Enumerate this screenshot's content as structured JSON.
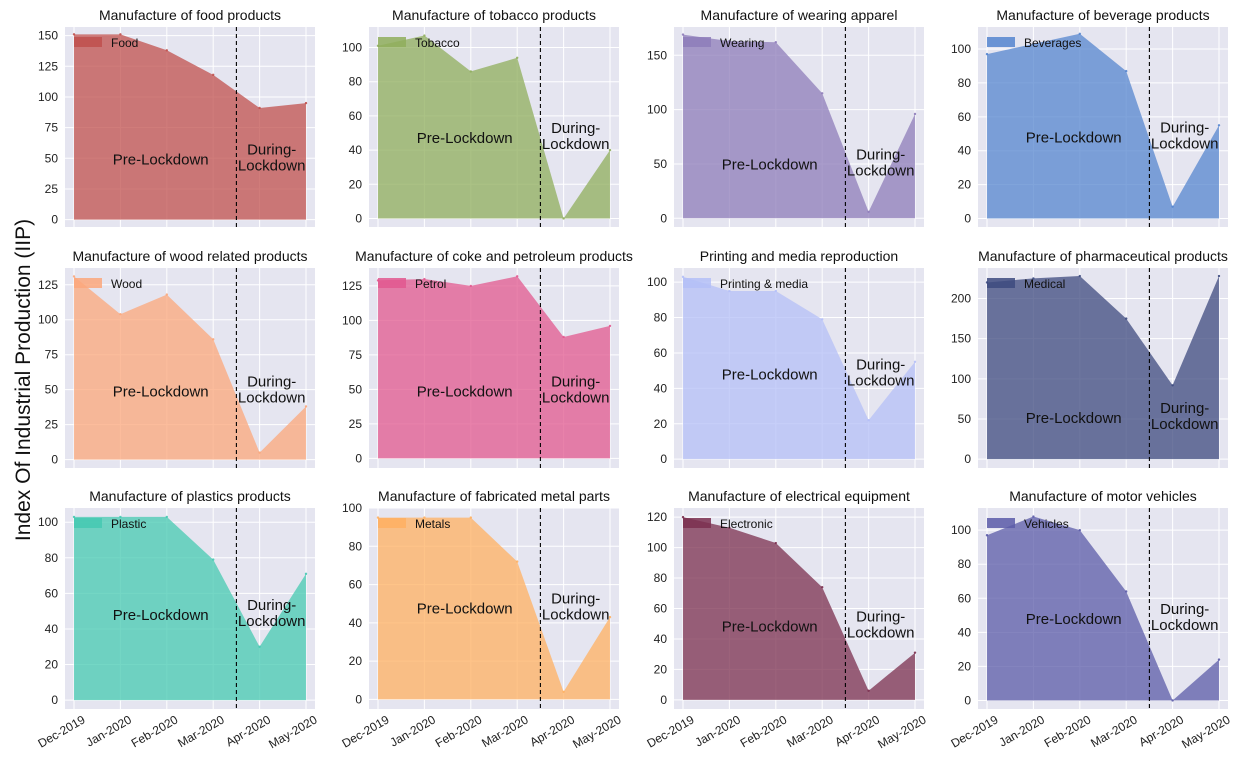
{
  "figure": {
    "ylabel": "Index Of Industrial Production (IIP)"
  },
  "chart_data": [
    {
      "type": "area",
      "title": "Manufacture of food products",
      "categories": [
        "Dec-2019",
        "Jan-2020",
        "Feb-2020",
        "Mar-2020",
        "Apr-2020",
        "May-2020"
      ],
      "series": [
        {
          "name": "Food",
          "values": [
            151,
            151,
            138,
            118,
            91,
            95
          ]
        }
      ],
      "color": "#c0504d",
      "ylim": [
        -6,
        157
      ],
      "yticks": [
        0,
        25,
        50,
        75,
        100,
        125,
        150
      ],
      "show_xticklabels": false,
      "lockdown_x": 3.5,
      "annotations": {
        "pre": "Pre-Lockdown",
        "during_1": "During-",
        "during_2": "Lockdown"
      },
      "annotation_y": {
        "pre": 45,
        "during": 45
      },
      "legend": "top-left",
      "grid": true
    },
    {
      "type": "area",
      "title": "Manufacture of tobacco products",
      "categories": [
        "Dec-2019",
        "Jan-2020",
        "Feb-2020",
        "Mar-2020",
        "Apr-2020",
        "May-2020"
      ],
      "series": [
        {
          "name": "Tobacco",
          "values": [
            101,
            107,
            86,
            94,
            0,
            40
          ]
        }
      ],
      "color": "#8fae5c",
      "ylim": [
        -5,
        112
      ],
      "yticks": [
        0,
        20,
        40,
        60,
        80,
        100
      ],
      "show_xticklabels": false,
      "lockdown_x": 3.5,
      "annotations": {
        "pre": "Pre-Lockdown",
        "during_1": "During-",
        "during_2": "Lockdown"
      },
      "annotation_y": {
        "pre": 44,
        "during": 44
      },
      "legend": "top-left",
      "grid": true
    },
    {
      "type": "area",
      "title": "Manufacture of wearing apparel",
      "categories": [
        "Dec-2019",
        "Jan-2020",
        "Feb-2020",
        "Mar-2020",
        "Apr-2020",
        "May-2020"
      ],
      "series": [
        {
          "name": "Wearing",
          "values": [
            169,
            163,
            162,
            115,
            6,
            96
          ]
        }
      ],
      "color": "#8e7cba",
      "ylim": [
        -8,
        176
      ],
      "yticks": [
        0,
        50,
        100,
        150
      ],
      "show_xticklabels": false,
      "lockdown_x": 3.5,
      "annotations": {
        "pre": "Pre-Lockdown",
        "during_1": "During-",
        "during_2": "Lockdown"
      },
      "annotation_y": {
        "pre": 45,
        "during": 45
      },
      "legend": "top-left",
      "grid": true
    },
    {
      "type": "area",
      "title": "Manufacture of beverage products",
      "categories": [
        "Dec-2019",
        "Jan-2020",
        "Feb-2020",
        "Mar-2020",
        "Apr-2020",
        "May-2020"
      ],
      "series": [
        {
          "name": "Beverages",
          "values": [
            97,
            103,
            109,
            87,
            7,
            55
          ]
        }
      ],
      "color": "#5585cf",
      "ylim": [
        -5,
        113
      ],
      "yticks": [
        0,
        20,
        40,
        60,
        80,
        100
      ],
      "show_xticklabels": false,
      "lockdown_x": 3.5,
      "annotations": {
        "pre": "Pre-Lockdown",
        "during_1": "During-",
        "during_2": "Lockdown"
      },
      "annotation_y": {
        "pre": 45,
        "during": 45
      },
      "legend": "top-left",
      "grid": true
    },
    {
      "type": "area",
      "title": "Manufacture of wood related products",
      "categories": [
        "Dec-2019",
        "Jan-2020",
        "Feb-2020",
        "Mar-2020",
        "Apr-2020",
        "May-2020"
      ],
      "series": [
        {
          "name": "Wood",
          "values": [
            131,
            104,
            118,
            86,
            5,
            38
          ]
        }
      ],
      "color": "#fba77b",
      "ylim": [
        -6,
        137
      ],
      "yticks": [
        0,
        25,
        50,
        75,
        100,
        125
      ],
      "show_xticklabels": false,
      "lockdown_x": 3.5,
      "annotations": {
        "pre": "Pre-Lockdown",
        "during_1": "During-",
        "during_2": "Lockdown"
      },
      "annotation_y": {
        "pre": 45,
        "during": 45
      },
      "legend": "top-left",
      "grid": true
    },
    {
      "type": "area",
      "title": "Manufacture of coke and  petroleum products",
      "categories": [
        "Dec-2019",
        "Jan-2020",
        "Feb-2020",
        "Mar-2020",
        "Apr-2020",
        "May-2020"
      ],
      "series": [
        {
          "name": "Petrol",
          "values": [
            129,
            130,
            125,
            132,
            88,
            96
          ]
        }
      ],
      "color": "#e2588f",
      "ylim": [
        -7,
        138
      ],
      "yticks": [
        0,
        25,
        50,
        75,
        100,
        125
      ],
      "show_xticklabels": false,
      "lockdown_x": 3.5,
      "annotations": {
        "pre": "Pre-Lockdown",
        "during_1": "During-",
        "during_2": "Lockdown"
      },
      "annotation_y": {
        "pre": 45,
        "during": 45
      },
      "legend": "top-left",
      "grid": true
    },
    {
      "type": "area",
      "title": "Printing and media reproduction",
      "categories": [
        "Dec-2019",
        "Jan-2020",
        "Feb-2020",
        "Mar-2020",
        "Apr-2020",
        "May-2020"
      ],
      "series": [
        {
          "name": "Printing & media",
          "values": [
            103,
            95,
            95,
            79,
            22,
            55
          ]
        }
      ],
      "color": "#b4bff7",
      "ylim": [
        -5,
        108
      ],
      "yticks": [
        0,
        20,
        40,
        60,
        80,
        100
      ],
      "show_xticklabels": false,
      "lockdown_x": 3.5,
      "annotations": {
        "pre": "Pre-Lockdown",
        "during_1": "During-",
        "during_2": "Lockdown"
      },
      "annotation_y": {
        "pre": 45,
        "during": 45
      },
      "legend": "top-left",
      "grid": true
    },
    {
      "type": "area",
      "title": "Manufacture of pharmaceutical products",
      "categories": [
        "Dec-2019",
        "Jan-2020",
        "Feb-2020",
        "Mar-2020",
        "Apr-2020",
        "May-2020"
      ],
      "series": [
        {
          "name": "Medical",
          "values": [
            220,
            225,
            228,
            175,
            92,
            228
          ]
        }
      ],
      "color": "#3d4a7f",
      "ylim": [
        -11,
        238
      ],
      "yticks": [
        0,
        50,
        100,
        150,
        200
      ],
      "show_xticklabels": false,
      "lockdown_x": 3.5,
      "annotations": {
        "pre": "Pre-Lockdown",
        "during_1": "During-",
        "during_2": "Lockdown"
      },
      "annotation_y": {
        "pre": 45,
        "during": 45
      },
      "legend": "top-left",
      "grid": true
    },
    {
      "type": "area",
      "title": "Manufacture of plastics products",
      "categories": [
        "Dec-2019",
        "Jan-2020",
        "Feb-2020",
        "Mar-2020",
        "Apr-2020",
        "May-2020"
      ],
      "series": [
        {
          "name": "Plastic",
          "values": [
            103,
            103,
            103,
            79,
            30,
            71
          ]
        }
      ],
      "color": "#45c9b2",
      "ylim": [
        -5,
        108
      ],
      "yticks": [
        0,
        20,
        40,
        60,
        80,
        100
      ],
      "show_xticklabels": true,
      "lockdown_x": 3.5,
      "annotations": {
        "pre": "Pre-Lockdown",
        "during_1": "During-",
        "during_2": "Lockdown"
      },
      "annotation_y": {
        "pre": 45,
        "during": 45
      },
      "legend": "top-left",
      "grid": true
    },
    {
      "type": "area",
      "title": "Manufacture of fabricated metal parts",
      "categories": [
        "Dec-2019",
        "Jan-2020",
        "Feb-2020",
        "Mar-2020",
        "Apr-2020",
        "May-2020"
      ],
      "series": [
        {
          "name": "Metals",
          "values": [
            95,
            95,
            95,
            72,
            4,
            43
          ]
        }
      ],
      "color": "#ffb062",
      "ylim": [
        -5,
        100
      ],
      "yticks": [
        0,
        20,
        40,
        60,
        80,
        100
      ],
      "show_xticklabels": true,
      "lockdown_x": 3.5,
      "annotations": {
        "pre": "Pre-Lockdown",
        "during_1": "During-",
        "during_2": "Lockdown"
      },
      "annotation_y": {
        "pre": 45,
        "during": 45
      },
      "legend": "top-left",
      "grid": true
    },
    {
      "type": "area",
      "title": "Manufacture of electrical equipment",
      "categories": [
        "Dec-2019",
        "Jan-2020",
        "Feb-2020",
        "Mar-2020",
        "Apr-2020",
        "May-2020"
      ],
      "series": [
        {
          "name": "Electronic",
          "values": [
            120,
            113,
            103,
            74,
            6,
            31
          ]
        }
      ],
      "color": "#7b2f4f",
      "ylim": [
        -6,
        126
      ],
      "yticks": [
        0,
        20,
        40,
        60,
        80,
        100,
        120
      ],
      "show_xticklabels": true,
      "lockdown_x": 3.5,
      "annotations": {
        "pre": "Pre-Lockdown",
        "during_1": "During-",
        "during_2": "Lockdown"
      },
      "annotation_y": {
        "pre": 45,
        "during": 45
      },
      "legend": "top-left",
      "grid": true
    },
    {
      "type": "area",
      "title": "Manufacture of motor vehicles",
      "categories": [
        "Dec-2019",
        "Jan-2020",
        "Feb-2020",
        "Mar-2020",
        "Apr-2020",
        "May-2020"
      ],
      "series": [
        {
          "name": "Vehicles",
          "values": [
            97,
            108,
            100,
            64,
            0,
            24
          ]
        }
      ],
      "color": "#5b5ba8",
      "ylim": [
        -5,
        113
      ],
      "yticks": [
        0,
        20,
        40,
        60,
        80,
        100
      ],
      "show_xticklabels": true,
      "lockdown_x": 3.5,
      "annotations": {
        "pre": "Pre-Lockdown",
        "during_1": "During-",
        "during_2": "Lockdown"
      },
      "annotation_y": {
        "pre": 45,
        "during": 45
      },
      "legend": "top-left",
      "grid": true
    }
  ]
}
